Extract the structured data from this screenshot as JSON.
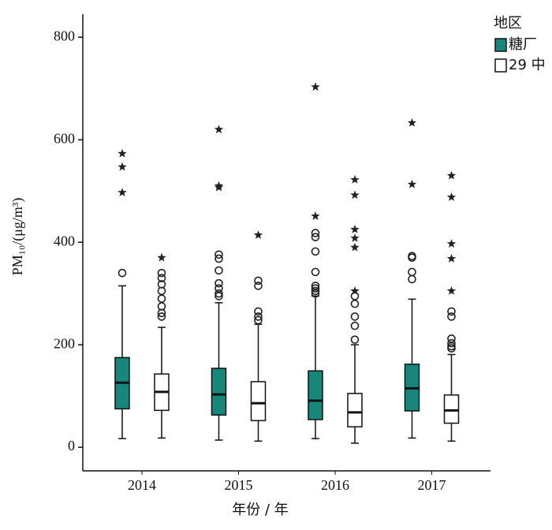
{
  "chart_data": {
    "type": "box",
    "y_label": "PM₁₀/(μg/m³)",
    "x_label": "年份 / 年",
    "legend_title": "地区",
    "categories": [
      "2014",
      "2015",
      "2016",
      "2017"
    ],
    "ylim": [
      -46,
      845
    ],
    "yticks": [
      0,
      200,
      400,
      600,
      800
    ],
    "grid": false,
    "legend": "right",
    "series": [
      {
        "name": "糖厂",
        "color": "#16877a",
        "boxes": [
          {
            "min": 17,
            "q1": 75,
            "median": 126,
            "q3": 175,
            "max": 315,
            "outliers": [
              340
            ],
            "extremes": [
              573,
              547,
              497
            ]
          },
          {
            "min": 14,
            "q1": 63,
            "median": 103,
            "q3": 154,
            "max": 282,
            "outliers": [
              376,
              368,
              345,
              320,
              310,
              300,
              295
            ],
            "extremes": [
              620,
              510,
              507
            ]
          },
          {
            "min": 17,
            "q1": 54,
            "median": 91,
            "q3": 149,
            "max": 295,
            "outliers": [
              418,
              410,
              382,
              342,
              315,
              310,
              305,
              300
            ],
            "extremes": [
              703,
              451
            ]
          },
          {
            "min": 18,
            "q1": 71,
            "median": 115,
            "q3": 162,
            "max": 289,
            "outliers": [
              373,
              370,
              342,
              328
            ],
            "extremes": [
              633,
              513
            ]
          }
        ]
      },
      {
        "name": "29 中",
        "color": "#ffffff",
        "boxes": [
          {
            "min": 18,
            "q1": 72,
            "median": 108,
            "q3": 143,
            "max": 234,
            "outliers": [
              340,
              330,
              318,
              305,
              290,
              275,
              262,
              255
            ],
            "extremes": [
              370
            ]
          },
          {
            "min": 12,
            "q1": 52,
            "median": 86,
            "q3": 128,
            "max": 240,
            "outliers": [
              325,
              315,
              265,
              255,
              248
            ],
            "extremes": [
              414
            ]
          },
          {
            "min": 8,
            "q1": 40,
            "median": 68,
            "q3": 105,
            "max": 200,
            "outliers": [
              295,
              280,
              255,
              237,
              210
            ],
            "extremes": [
              522,
              492,
              425,
              408,
              390,
              305
            ]
          },
          {
            "min": 12,
            "q1": 47,
            "median": 72,
            "q3": 102,
            "max": 181,
            "outliers": [
              265,
              255,
              212,
              203,
              197,
              193
            ],
            "extremes": [
              530,
              488,
              397,
              368,
              305
            ]
          }
        ]
      }
    ]
  }
}
